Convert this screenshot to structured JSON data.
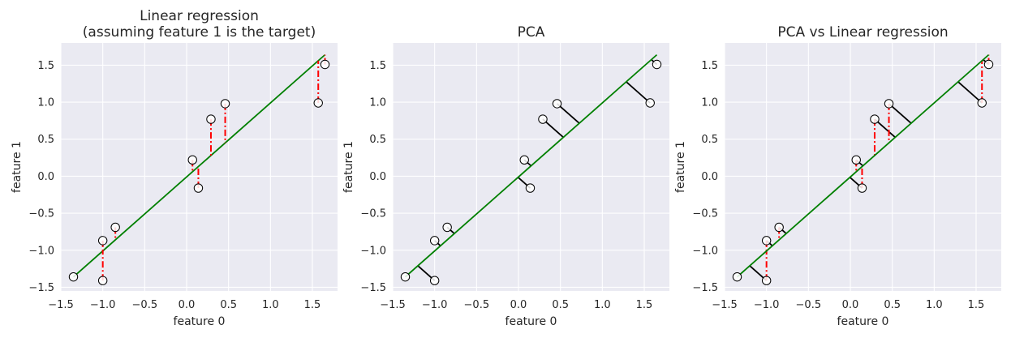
{
  "chart_data": [
    {
      "type": "scatter",
      "title": "Linear regression\n(assuming feature 1 is the target)",
      "xlabel": "feature 0",
      "ylabel": "feature 1",
      "xlim": [
        -1.5,
        1.8
      ],
      "ylim": [
        -1.55,
        1.8
      ],
      "xticks": [
        -1.5,
        -1.0,
        -0.5,
        0.0,
        0.5,
        1.0,
        1.5
      ],
      "xtick_labels": [
        "−1.5",
        "−1.0",
        "−0.5",
        "0.0",
        "0.5",
        "1.0",
        "1.5"
      ],
      "yticks": [
        -1.5,
        -1.0,
        -0.5,
        0.0,
        0.5,
        1.0,
        1.5
      ],
      "ytick_labels": [
        "−1.5",
        "−1.0",
        "−0.5",
        "0.0",
        "0.5",
        "1.0",
        "1.5"
      ],
      "grid": true,
      "fit_line": {
        "x": [
          -1.35,
          1.65
        ],
        "y": [
          -1.36,
          1.64
        ],
        "color": "#008000"
      },
      "points": [
        {
          "x": -1.35,
          "y": -1.36
        },
        {
          "x": -1.0,
          "y": -1.41
        },
        {
          "x": -1.0,
          "y": -0.87
        },
        {
          "x": -0.85,
          "y": -0.69
        },
        {
          "x": 0.07,
          "y": 0.22
        },
        {
          "x": 0.14,
          "y": -0.16
        },
        {
          "x": 0.29,
          "y": 0.77
        },
        {
          "x": 0.46,
          "y": 0.98
        },
        {
          "x": 1.57,
          "y": 0.99
        },
        {
          "x": 1.65,
          "y": 1.51
        }
      ],
      "residuals": {
        "mode": "vertical",
        "color": "#ff0000",
        "style": "dashdot"
      }
    },
    {
      "type": "scatter",
      "title": "PCA",
      "xlabel": "feature 0",
      "ylabel": "feature 1",
      "xlim": [
        -1.5,
        1.8
      ],
      "ylim": [
        -1.55,
        1.8
      ],
      "xticks": [
        -1.5,
        -1.0,
        -0.5,
        0.0,
        0.5,
        1.0,
        1.5
      ],
      "xtick_labels": [
        "−1.5",
        "−1.0",
        "−0.5",
        "0.0",
        "0.5",
        "1.0",
        "1.5"
      ],
      "yticks": [
        -1.5,
        -1.0,
        -0.5,
        0.0,
        0.5,
        1.0,
        1.5
      ],
      "ytick_labels": [
        "−1.5",
        "−1.0",
        "−0.5",
        "0.0",
        "0.5",
        "1.0",
        "1.5"
      ],
      "grid": true,
      "fit_line": {
        "x": [
          -1.35,
          1.65
        ],
        "y": [
          -1.36,
          1.64
        ],
        "color": "#008000"
      },
      "points": [
        {
          "x": -1.35,
          "y": -1.36
        },
        {
          "x": -1.0,
          "y": -1.41
        },
        {
          "x": -1.0,
          "y": -0.87
        },
        {
          "x": -0.85,
          "y": -0.69
        },
        {
          "x": 0.07,
          "y": 0.22
        },
        {
          "x": 0.14,
          "y": -0.16
        },
        {
          "x": 0.29,
          "y": 0.77
        },
        {
          "x": 0.46,
          "y": 0.98
        },
        {
          "x": 1.57,
          "y": 0.99
        },
        {
          "x": 1.65,
          "y": 1.51
        }
      ],
      "residuals": {
        "mode": "orthogonal",
        "color": "#000000",
        "style": "solid"
      }
    },
    {
      "type": "scatter",
      "title": "PCA vs Linear regression",
      "xlabel": "feature 0",
      "ylabel": "feature 1",
      "xlim": [
        -1.5,
        1.8
      ],
      "ylim": [
        -1.55,
        1.8
      ],
      "xticks": [
        -1.5,
        -1.0,
        -0.5,
        0.0,
        0.5,
        1.0,
        1.5
      ],
      "xtick_labels": [
        "−1.5",
        "−1.0",
        "−0.5",
        "0.0",
        "0.5",
        "1.0",
        "1.5"
      ],
      "yticks": [
        -1.5,
        -1.0,
        -0.5,
        0.0,
        0.5,
        1.0,
        1.5
      ],
      "ytick_labels": [
        "−1.5",
        "−1.0",
        "−0.5",
        "0.0",
        "0.5",
        "1.0",
        "1.5"
      ],
      "grid": true,
      "fit_line": {
        "x": [
          -1.35,
          1.65
        ],
        "y": [
          -1.36,
          1.64
        ],
        "color": "#008000"
      },
      "points": [
        {
          "x": -1.35,
          "y": -1.36
        },
        {
          "x": -1.0,
          "y": -1.41
        },
        {
          "x": -1.0,
          "y": -0.87
        },
        {
          "x": -0.85,
          "y": -0.69
        },
        {
          "x": 0.07,
          "y": 0.22
        },
        {
          "x": 0.14,
          "y": -0.16
        },
        {
          "x": 0.29,
          "y": 0.77
        },
        {
          "x": 0.46,
          "y": 0.98
        },
        {
          "x": 1.57,
          "y": 0.99
        },
        {
          "x": 1.65,
          "y": 1.51
        }
      ],
      "residuals": {
        "mode": "both",
        "color": "#ff0000",
        "style": "dashdot",
        "orthogonal_color": "#000000"
      }
    }
  ],
  "colors": {
    "axes_bg": "#eaeaf2",
    "grid": "#ffffff",
    "text": "#262626",
    "marker_face": "#ffffff",
    "marker_edge": "#000000"
  }
}
